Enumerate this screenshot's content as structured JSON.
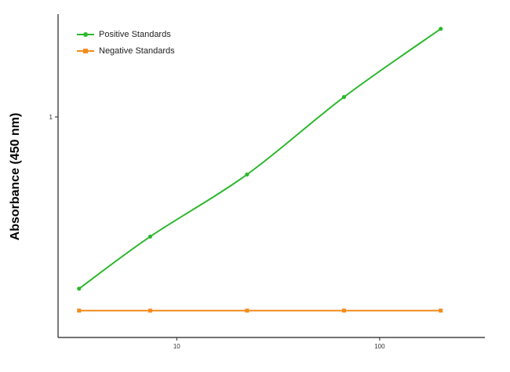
{
  "chart_data": {
    "type": "line",
    "xscale": "log",
    "yscale": "log",
    "xlim": [
      2.6,
      330
    ],
    "ylim": [
      0.16,
      2.35
    ],
    "x_ticks": [
      10,
      100
    ],
    "x_tick_labels": [
      "10",
      "100"
    ],
    "y_ticks": [
      1
    ],
    "y_tick_labels": [
      "1"
    ],
    "xlabel": "",
    "ylabel": "Absorbance (450 nm)",
    "legend_position": "top-left",
    "grid": false,
    "x": [
      3.3,
      7.4,
      22.2,
      66.7,
      200
    ],
    "series": [
      {
        "name": "Positive Standards",
        "color": "#2db82d",
        "values": [
          0.24,
          0.37,
          0.62,
          1.18,
          2.08
        ]
      },
      {
        "name": "Negative Standards",
        "color": "#f28c1e",
        "values": [
          0.2,
          0.2,
          0.2,
          0.2,
          0.2
        ]
      }
    ]
  }
}
